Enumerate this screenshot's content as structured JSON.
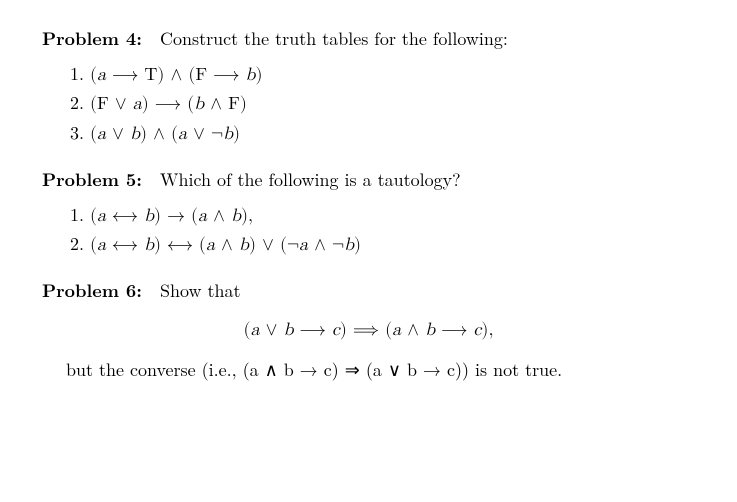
{
  "problems": {
    "p4": {
      "label": "Problem 4:",
      "prompt": "Construct the truth tables for the following:",
      "items": [
        "(a ⟶ T) ∧ (F ⟶ b)",
        "(F ∨ a) ⟶ (b ∧ F)",
        "(a ∨ b) ∧ (a ∨ ¬b)"
      ]
    },
    "p5": {
      "label": "Problem 5:",
      "prompt": "Which of the following is a tautology?",
      "items": [
        "(a ⟷ b) → (a ∧ b),",
        "(a ⟷ b) ⟷ (a ∧ b) ∨ (¬a ∧ ¬b)"
      ]
    },
    "p6": {
      "label": "Problem 6:",
      "prompt": "Show that",
      "display": "(a ∨ b ⟶ c) ⟹ (a ∧ b ⟶ c),",
      "body": "but the converse (i.e., (a ∧ b → c) ⇒ (a ∨ b → c)) is not true."
    }
  }
}
